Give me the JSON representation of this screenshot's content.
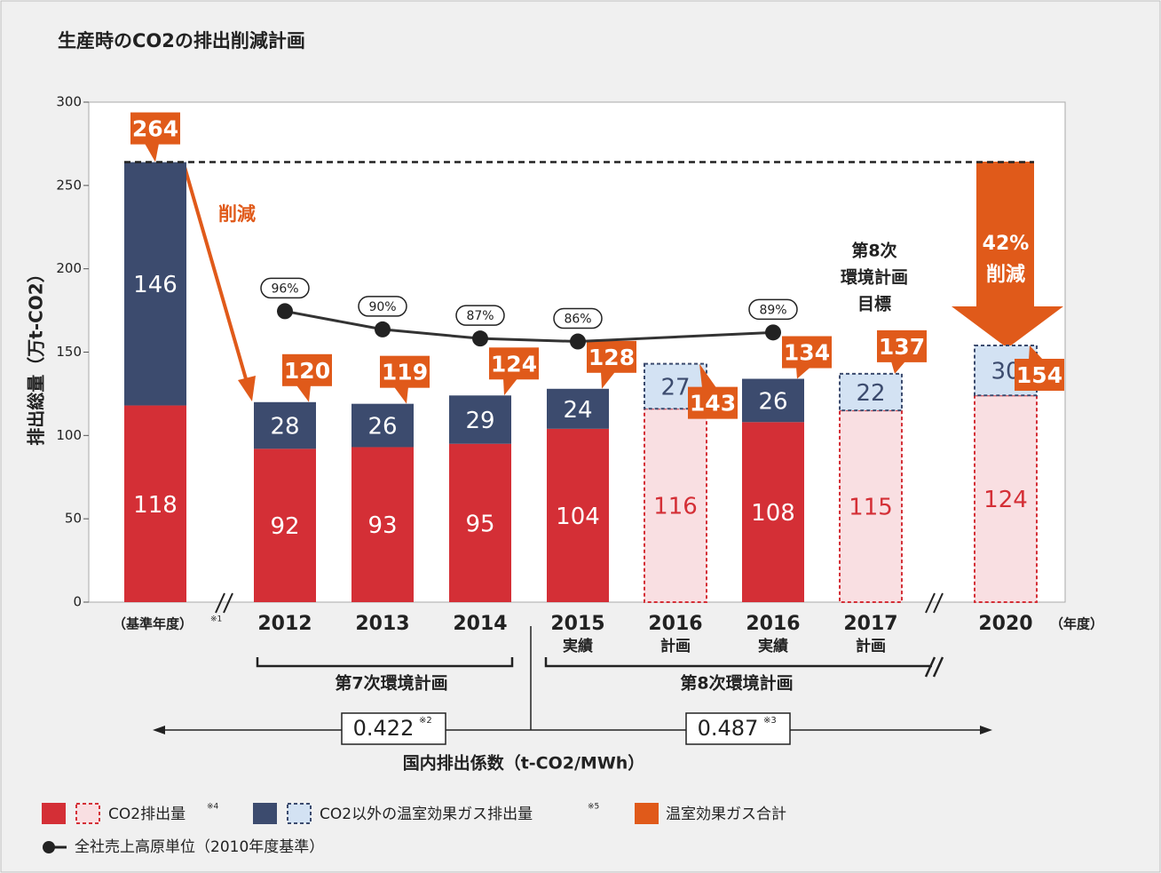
{
  "chart_data": {
    "type": "bar",
    "stacked": true,
    "title": "生産時のCO2の排出削減計画",
    "y_label": "排出総量（万t-CO2）",
    "x_unit": "（年度）",
    "categories": [
      "（基準年度）",
      "2012",
      "2013",
      "2014",
      "2015",
      "2016",
      "2016",
      "2017",
      "2020"
    ],
    "category_notes": [
      "※1",
      null,
      null,
      null,
      null,
      null,
      null,
      null,
      null
    ],
    "category_sublabels": [
      null,
      null,
      null,
      null,
      "実績",
      "計画",
      "実績",
      "計画",
      null
    ],
    "planned": [
      false,
      false,
      false,
      false,
      false,
      true,
      false,
      true,
      true
    ],
    "series": [
      {
        "name": "CO2排出量",
        "note": "※4",
        "color": "#d42f36",
        "planned_fill": "#f9dfe2",
        "values": [
          118,
          92,
          93,
          95,
          104,
          116,
          108,
          115,
          124
        ]
      },
      {
        "name": "CO2以外の温室効果ガス排出量",
        "note": "※5",
        "color": "#3c4b6e",
        "planned_fill": "#d3e2f3",
        "values": [
          146,
          28,
          26,
          29,
          24,
          27,
          26,
          22,
          30
        ]
      },
      {
        "name": "温室効果ガス合計",
        "role": "total",
        "color": "#e05a1a",
        "values": [
          264,
          120,
          119,
          124,
          128,
          143,
          134,
          137,
          154
        ]
      },
      {
        "name": "全社売上高原単位（2010年度基準）",
        "type": "line",
        "axis": "y2",
        "color": "#333333",
        "values": [
          null,
          96,
          90,
          87,
          86,
          null,
          89,
          null,
          null
        ],
        "value_labels": [
          null,
          "96%",
          "90%",
          "87%",
          "86%",
          null,
          "89%",
          null,
          null
        ]
      }
    ],
    "ylim": [
      0,
      300
    ],
    "yticks": [
      0,
      50,
      100,
      150,
      200,
      250,
      300
    ],
    "y2lim": [
      0,
      165
    ],
    "annotations": {
      "reduction": "削減",
      "target": [
        "第8次",
        "環境計画",
        "目標"
      ],
      "target_reduction": [
        "42%",
        "削減"
      ]
    },
    "periods": [
      "第7次環境計画",
      "第8次環境計画"
    ],
    "emission_factors": {
      "title": "国内排出係数（t-CO2/MWh）",
      "items": [
        {
          "value": 0.422,
          "note": "※2"
        },
        {
          "value": 0.487,
          "note": "※3"
        }
      ]
    }
  }
}
